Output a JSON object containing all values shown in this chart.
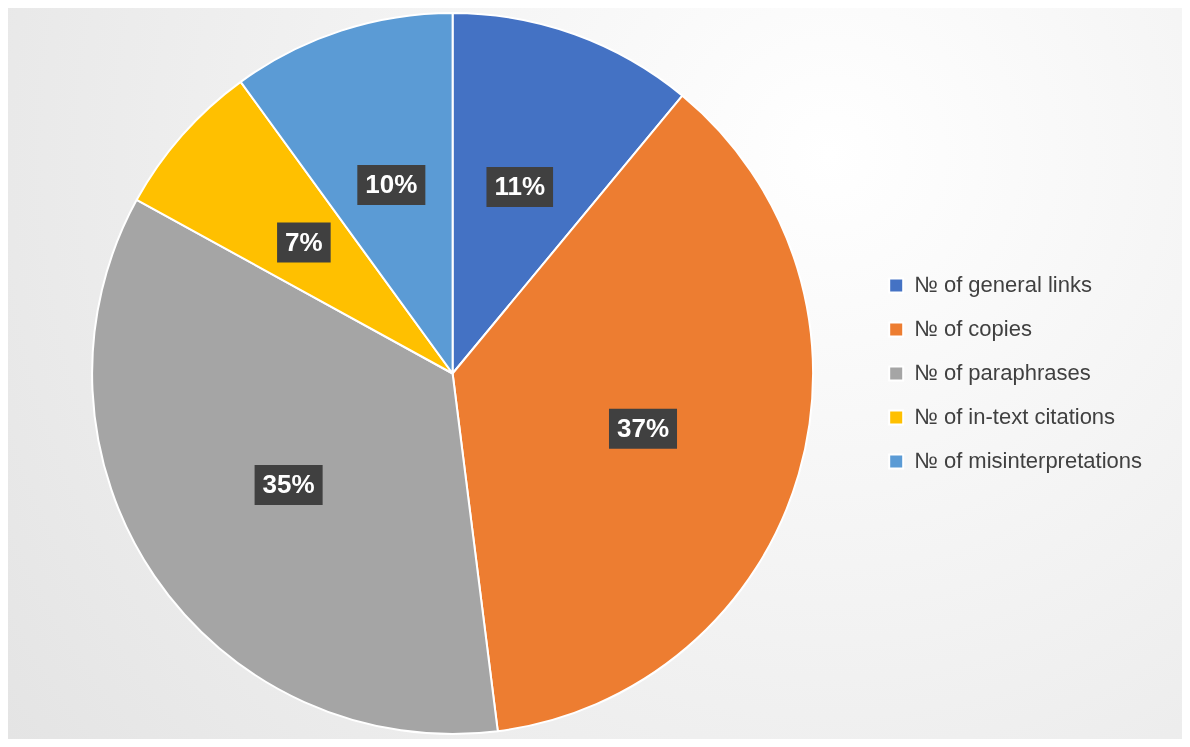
{
  "chart_data": {
    "type": "pie",
    "categories": [
      "№ of general links",
      "№ of copies",
      "№ of paraphrases",
      "№ of in-text citations",
      "№ of misinterpretations"
    ],
    "values": [
      11,
      37,
      35,
      7,
      10
    ],
    "colors": [
      "#4472c4",
      "#ed7d31",
      "#a5a5a5",
      "#ffc000",
      "#5b9bd5"
    ],
    "value_labels": [
      "11%",
      "37%",
      "35%",
      "7%",
      "10%"
    ],
    "legend": "right"
  }
}
